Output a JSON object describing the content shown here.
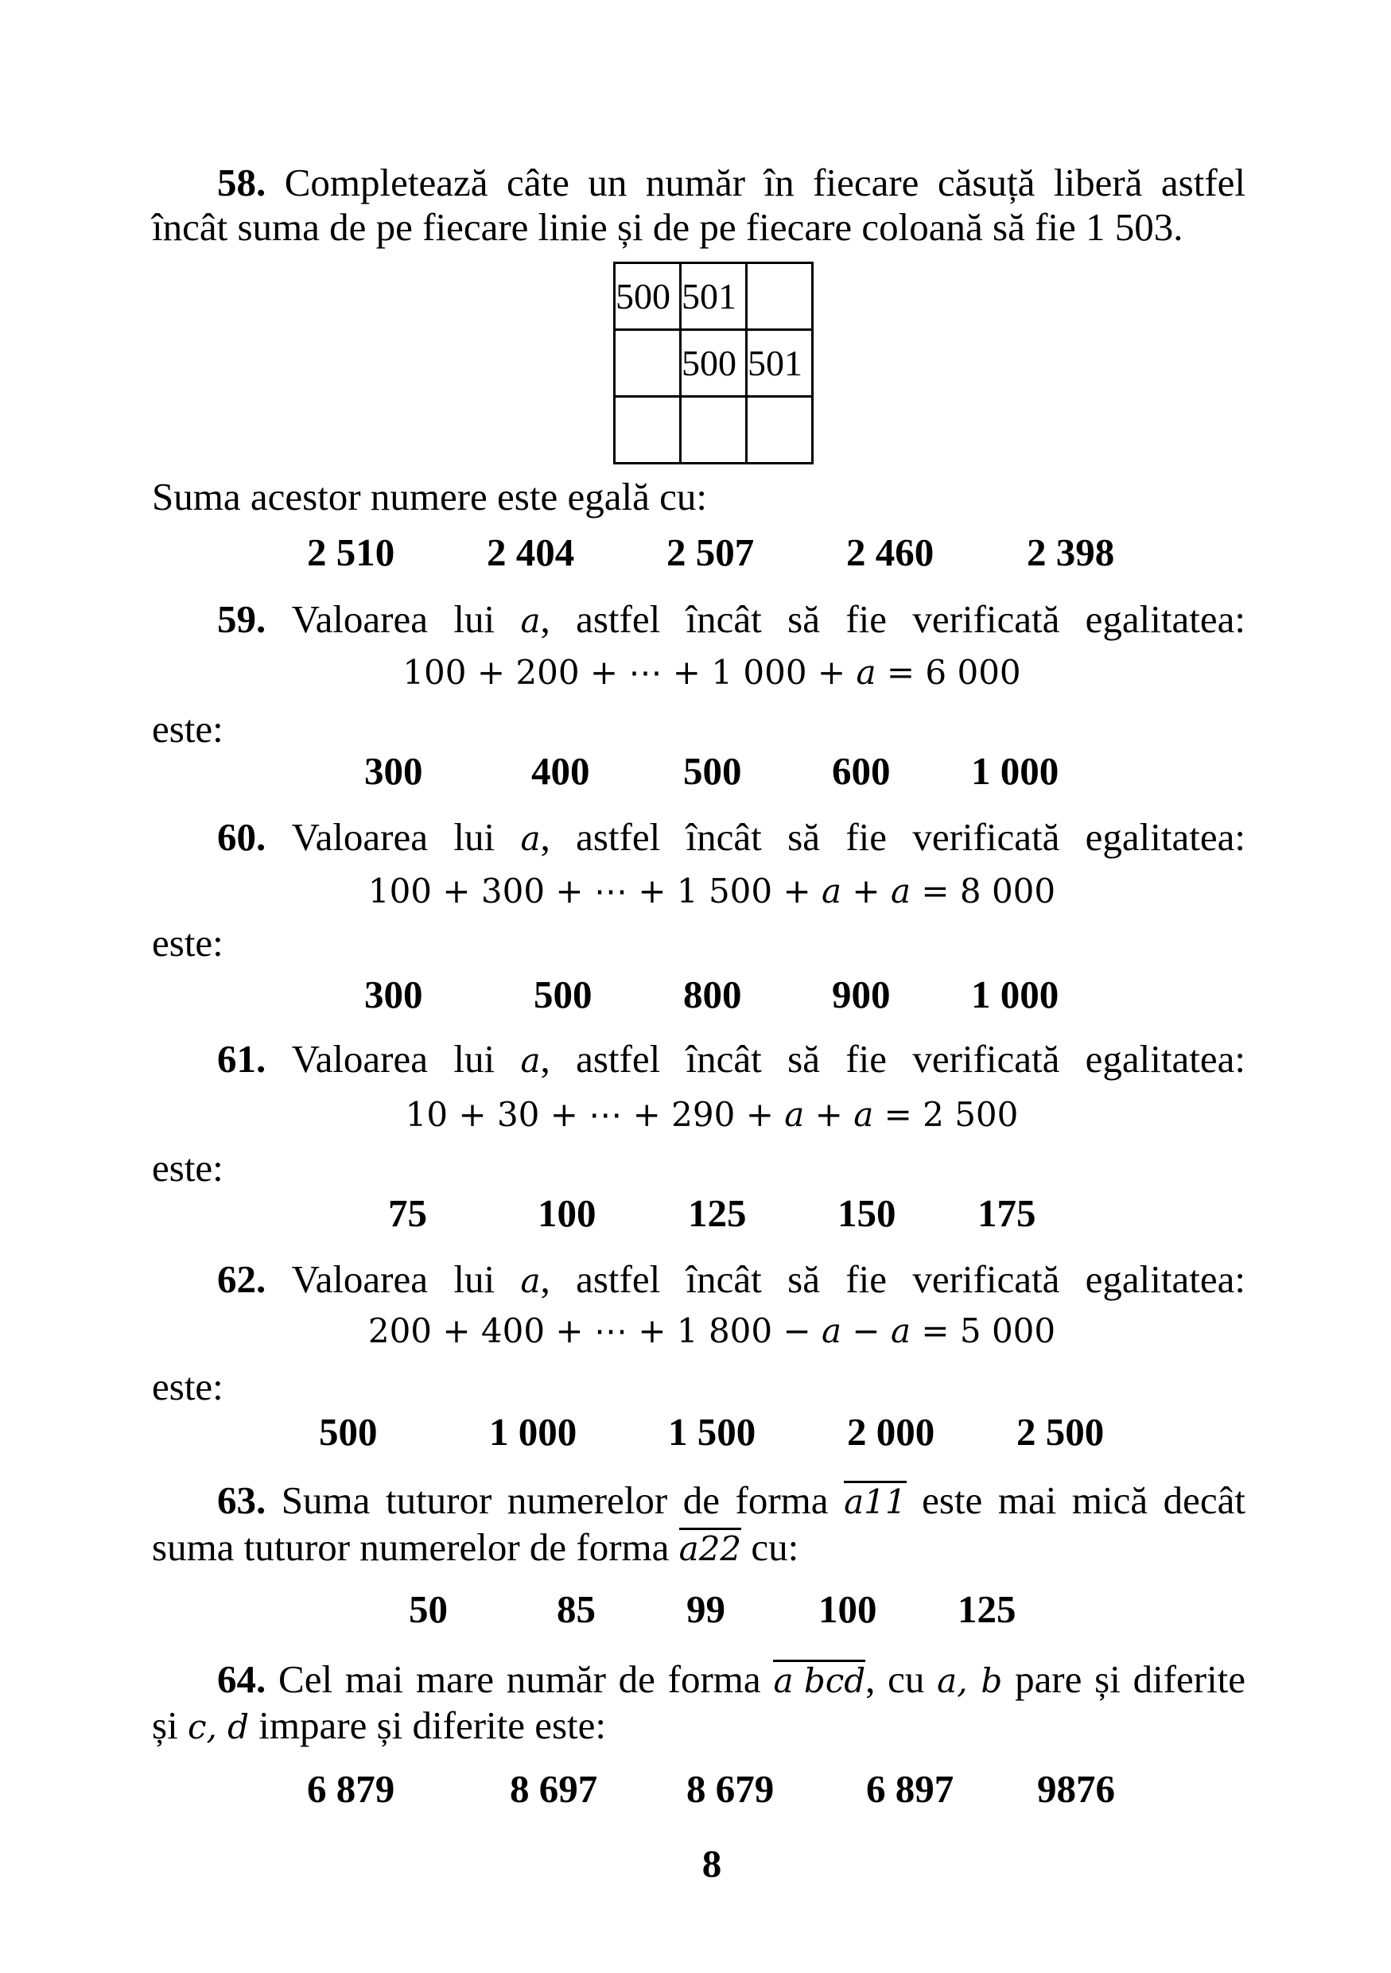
{
  "page_number": "8",
  "problems": {
    "p58": {
      "number": "58.",
      "line1": "Completează câte un număr în fiecare căsuță liberă astfel",
      "line2": "încât suma de pe fiecare linie și de pe fiecare coloană să fie 1 503.",
      "grid": [
        [
          "500",
          "501",
          ""
        ],
        [
          "",
          "500",
          "501"
        ],
        [
          "",
          "",
          ""
        ]
      ],
      "question": "Suma acestor numere este egală cu:",
      "options": [
        "2 510",
        "2 404",
        "2 507",
        "2 460",
        "2 398"
      ]
    },
    "p59": {
      "number": "59.",
      "intro_a": "Valoarea lui",
      "var": "a",
      "intro_b": ", astfel încât să fie verificată egalitatea:",
      "equation": "100 + 200 + ⋯ + 1 000 + a = 6 000",
      "tail": "este:",
      "options": [
        "300",
        "400",
        "500",
        "600",
        "1 000"
      ]
    },
    "p60": {
      "number": "60.",
      "intro_a": "Valoarea lui",
      "var": "a",
      "intro_b": ", astfel încât să fie verificată egalitatea:",
      "equation": "100 + 300 + ⋯ + 1 500 + a + a = 8 000",
      "tail": "este:",
      "options": [
        "300",
        "500",
        "800",
        "900",
        "1 000"
      ]
    },
    "p61": {
      "number": "61.",
      "intro_a": "Valoarea lui",
      "var": "a",
      "intro_b": ", astfel încât să fie verificată egalitatea:",
      "equation": "10 + 30 + ⋯ + 290 + a + a = 2 500",
      "tail": "este:",
      "options": [
        "75",
        "100",
        "125",
        "150",
        "175"
      ]
    },
    "p62": {
      "number": "62.",
      "intro_a": "Valoarea lui",
      "var": "a",
      "intro_b": ", astfel încât să fie verificată egalitatea:",
      "equation": "200 + 400 + ⋯ + 1 800 − a − a = 5 000",
      "tail": "este:",
      "options": [
        "500",
        "1 000",
        "1 500",
        "2 000",
        "2 500"
      ]
    },
    "p63": {
      "number": "63.",
      "line1_a": "Suma tuturor numerelor de forma",
      "form1": "a11",
      "line1_b": "este mai mică decât",
      "line2_a": "suma tuturor numerelor de forma",
      "form2": "a22",
      "line2_b": "cu:",
      "options": [
        "50",
        "85",
        "99",
        "100",
        "125"
      ]
    },
    "p64": {
      "number": "64.",
      "line1_a": "Cel mai mare număr de forma",
      "form": "a bcd",
      "line1_b": ", cu",
      "vars1": "a, b",
      "line1_c": "pare și diferite",
      "line2_a": "și",
      "vars2": "c, d",
      "line2_b": "impare și diferite este:",
      "options": [
        "6 879",
        "8 697",
        "8 679",
        "6 897",
        "9876"
      ]
    }
  }
}
